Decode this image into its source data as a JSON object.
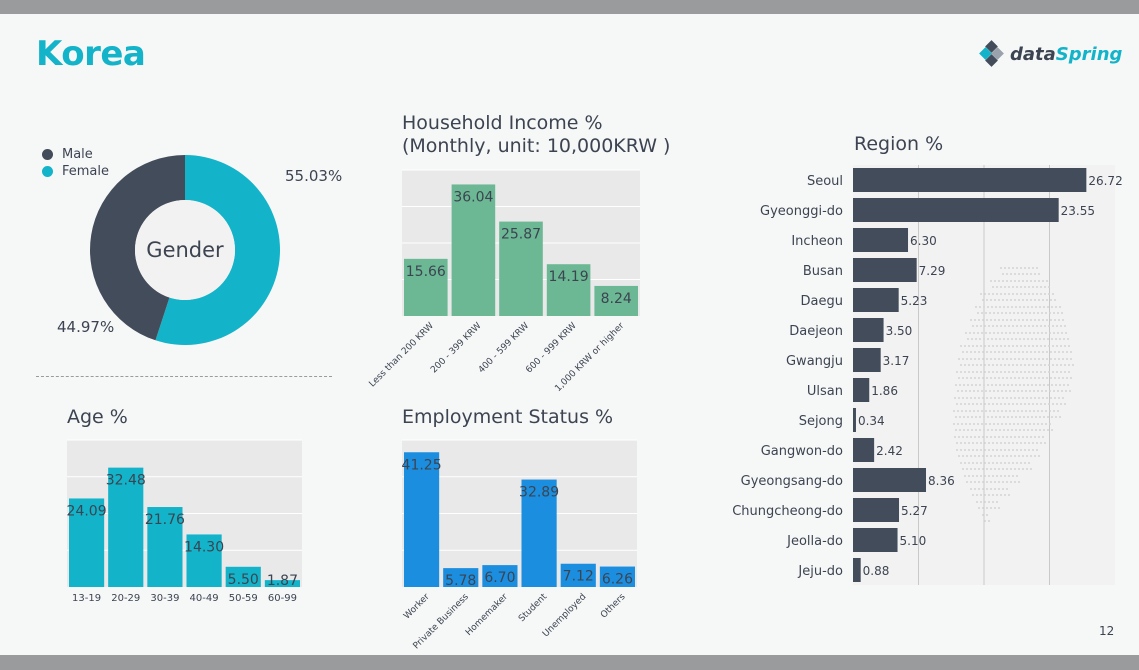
{
  "page": {
    "title": "Korea",
    "logo_main": "data",
    "logo_accent": "Spring",
    "page_number": "12"
  },
  "colors": {
    "teal": "#13b3c9",
    "slate": "#434c5a",
    "green": "#6cb894",
    "blue": "#1c8ee0",
    "grid_bg": "#e9e9ea"
  },
  "gender": {
    "center_label": "Gender",
    "legend": [
      {
        "name": "Male",
        "color": "#434c5a"
      },
      {
        "name": "Female",
        "color": "#13b3c9"
      }
    ],
    "female_label": "55.03%",
    "male_label": "44.97%"
  },
  "income": {
    "title_line1": "Household Income %",
    "title_line2": "(Monthly, unit: 10,000KRW )"
  },
  "employment": {
    "title": "Employment Status %"
  },
  "age": {
    "title": "Age %"
  },
  "region": {
    "title": "Region %"
  },
  "chart_data": [
    {
      "id": "gender",
      "type": "pie",
      "categories": [
        "Male",
        "Female"
      ],
      "values": [
        44.97,
        55.03
      ]
    },
    {
      "id": "income",
      "type": "bar",
      "categories": [
        "Less than 200 KRW",
        "200 - 399 KRW",
        "400 - 599 KRW",
        "600 - 999 KRW",
        "1,000 KRW or higher"
      ],
      "values": [
        15.66,
        36.04,
        25.87,
        14.19,
        8.24
      ],
      "labels": [
        "15.66",
        "36.04",
        "25.87",
        "14.19",
        "8.24"
      ],
      "ylim": [
        0,
        40
      ],
      "grid": true
    },
    {
      "id": "age",
      "type": "bar",
      "categories": [
        "13-19",
        "20-29",
        "30-39",
        "40-49",
        "50-59",
        "60-99"
      ],
      "values": [
        24.09,
        32.48,
        21.76,
        14.3,
        5.5,
        1.87
      ],
      "labels": [
        "24.09",
        "32.48",
        "21.76",
        "14.30",
        "5.50",
        "1.87"
      ],
      "ylim": [
        0,
        40
      ],
      "grid": true
    },
    {
      "id": "employment",
      "type": "bar",
      "categories": [
        "Worker",
        "Private Business",
        "Homemaker",
        "Student",
        "Unemployed",
        "Others"
      ],
      "values": [
        41.25,
        5.78,
        6.7,
        32.89,
        7.12,
        6.26
      ],
      "labels": [
        "41.25",
        "5.78",
        "6.70",
        "32.89",
        "7.12",
        "6.26"
      ],
      "ylim": [
        0,
        45
      ],
      "grid": true
    },
    {
      "id": "region",
      "type": "bar",
      "orientation": "horizontal",
      "categories": [
        "Seoul",
        "Gyeonggi-do",
        "Incheon",
        "Busan",
        "Daegu",
        "Daejeon",
        "Gwangju",
        "Ulsan",
        "Sejong",
        "Gangwon-do",
        "Gyeongsang-do",
        "Chungcheong-do",
        "Jeolla-do",
        "Jeju-do"
      ],
      "values": [
        26.72,
        23.55,
        6.3,
        7.29,
        5.23,
        3.5,
        3.17,
        1.86,
        0.34,
        2.42,
        8.36,
        5.27,
        5.1,
        0.88
      ],
      "labels": [
        "26.72",
        "23.55",
        "6.30",
        "7.29",
        "5.23",
        "3.50",
        "3.17",
        "1.86",
        "0.34",
        "2.42",
        "8.36",
        "5.27",
        "5.10",
        "0.88"
      ],
      "xlim": [
        0,
        30
      ],
      "grid": true
    }
  ]
}
